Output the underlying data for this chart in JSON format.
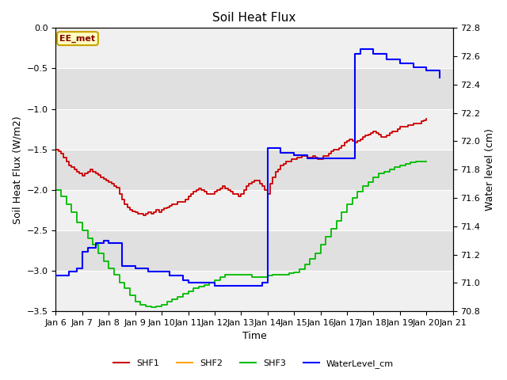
{
  "title": "Soil Heat Flux",
  "ylabel_left": "Soil Heat Flux (W/m2)",
  "ylabel_right": "Water level (cm)",
  "xlabel": "Time",
  "ylim_left": [
    -3.5,
    0.0
  ],
  "ylim_right": [
    70.8,
    72.8
  ],
  "background_color": "#ffffff",
  "plot_bg_light": "#f0f0f0",
  "plot_bg_dark": "#e0e0e0",
  "legend_label": "EE_met",
  "series": {
    "SHF1": {
      "color": "#cc0000",
      "x": [
        6.0,
        6.1,
        6.2,
        6.3,
        6.4,
        6.5,
        6.6,
        6.7,
        6.8,
        6.9,
        7.0,
        7.1,
        7.2,
        7.3,
        7.4,
        7.5,
        7.6,
        7.7,
        7.8,
        7.9,
        8.0,
        8.1,
        8.2,
        8.3,
        8.4,
        8.5,
        8.6,
        8.7,
        8.8,
        8.9,
        9.0,
        9.1,
        9.2,
        9.3,
        9.4,
        9.5,
        9.6,
        9.7,
        9.8,
        9.9,
        10.0,
        10.1,
        10.2,
        10.3,
        10.4,
        10.5,
        10.6,
        10.7,
        10.8,
        10.9,
        11.0,
        11.1,
        11.2,
        11.3,
        11.4,
        11.5,
        11.6,
        11.7,
        11.8,
        11.9,
        12.0,
        12.1,
        12.2,
        12.3,
        12.4,
        12.5,
        12.6,
        12.7,
        12.8,
        12.9,
        13.0,
        13.1,
        13.2,
        13.3,
        13.4,
        13.5,
        13.6,
        13.7,
        13.8,
        13.9,
        14.0,
        14.1,
        14.2,
        14.3,
        14.4,
        14.5,
        14.6,
        14.7,
        14.8,
        14.9,
        15.0,
        15.1,
        15.2,
        15.3,
        15.4,
        15.5,
        15.6,
        15.7,
        15.8,
        15.9,
        16.0,
        16.1,
        16.2,
        16.3,
        16.4,
        16.5,
        16.6,
        16.7,
        16.8,
        16.9,
        17.0,
        17.1,
        17.2,
        17.3,
        17.4,
        17.5,
        17.6,
        17.7,
        17.8,
        17.9,
        18.0,
        18.1,
        18.2,
        18.3,
        18.4,
        18.5,
        18.6,
        18.7,
        18.8,
        18.9,
        19.0,
        19.1,
        19.2,
        19.3,
        19.4,
        19.5,
        19.6,
        19.7,
        19.8,
        19.9,
        20.0
      ],
      "y": [
        -1.5,
        -1.52,
        -1.55,
        -1.6,
        -1.65,
        -1.7,
        -1.72,
        -1.75,
        -1.78,
        -1.8,
        -1.83,
        -1.8,
        -1.78,
        -1.75,
        -1.78,
        -1.8,
        -1.82,
        -1.85,
        -1.87,
        -1.88,
        -1.9,
        -1.92,
        -1.95,
        -1.97,
        -2.05,
        -2.12,
        -2.18,
        -2.22,
        -2.25,
        -2.27,
        -2.28,
        -2.3,
        -2.3,
        -2.32,
        -2.3,
        -2.28,
        -2.3,
        -2.28,
        -2.25,
        -2.28,
        -2.25,
        -2.23,
        -2.22,
        -2.2,
        -2.18,
        -2.18,
        -2.15,
        -2.15,
        -2.15,
        -2.12,
        -2.08,
        -2.05,
        -2.02,
        -2.0,
        -1.98,
        -2.0,
        -2.02,
        -2.05,
        -2.05,
        -2.05,
        -2.02,
        -2.0,
        -1.98,
        -1.95,
        -1.98,
        -2.0,
        -2.02,
        -2.05,
        -2.05,
        -2.08,
        -2.05,
        -2.0,
        -1.95,
        -1.92,
        -1.9,
        -1.88,
        -1.88,
        -1.92,
        -1.95,
        -2.0,
        -2.05,
        -1.92,
        -1.85,
        -1.78,
        -1.75,
        -1.7,
        -1.68,
        -1.65,
        -1.65,
        -1.62,
        -1.62,
        -1.6,
        -1.6,
        -1.58,
        -1.58,
        -1.6,
        -1.6,
        -1.58,
        -1.6,
        -1.62,
        -1.62,
        -1.58,
        -1.58,
        -1.55,
        -1.52,
        -1.5,
        -1.5,
        -1.48,
        -1.45,
        -1.42,
        -1.4,
        -1.38,
        -1.4,
        -1.42,
        -1.4,
        -1.38,
        -1.35,
        -1.33,
        -1.32,
        -1.3,
        -1.28,
        -1.3,
        -1.32,
        -1.35,
        -1.35,
        -1.33,
        -1.3,
        -1.28,
        -1.28,
        -1.25,
        -1.22,
        -1.22,
        -1.22,
        -1.2,
        -1.2,
        -1.18,
        -1.18,
        -1.18,
        -1.15,
        -1.14,
        -1.12
      ]
    },
    "SHF2": {
      "color": "#ffa500",
      "x": [
        6,
        21
      ],
      "y": [
        0.0,
        0.0
      ]
    },
    "SHF3": {
      "color": "#00bb00",
      "x": [
        6.0,
        6.2,
        6.4,
        6.6,
        6.8,
        7.0,
        7.2,
        7.4,
        7.6,
        7.8,
        8.0,
        8.2,
        8.4,
        8.6,
        8.8,
        9.0,
        9.2,
        9.4,
        9.6,
        9.8,
        10.0,
        10.2,
        10.4,
        10.6,
        10.8,
        11.0,
        11.2,
        11.4,
        11.6,
        11.8,
        12.0,
        12.2,
        12.4,
        12.6,
        12.8,
        13.0,
        13.2,
        13.4,
        13.6,
        13.8,
        14.0,
        14.2,
        14.4,
        14.6,
        14.8,
        15.0,
        15.2,
        15.4,
        15.6,
        15.8,
        16.0,
        16.2,
        16.4,
        16.6,
        16.8,
        17.0,
        17.2,
        17.4,
        17.6,
        17.8,
        18.0,
        18.2,
        18.4,
        18.6,
        18.8,
        19.0,
        19.2,
        19.4,
        19.6,
        19.8,
        20.0
      ],
      "y": [
        -2.0,
        -2.08,
        -2.18,
        -2.28,
        -2.4,
        -2.5,
        -2.6,
        -2.68,
        -2.78,
        -2.88,
        -2.97,
        -3.05,
        -3.15,
        -3.22,
        -3.3,
        -3.38,
        -3.42,
        -3.44,
        -3.45,
        -3.44,
        -3.42,
        -3.38,
        -3.35,
        -3.32,
        -3.28,
        -3.25,
        -3.22,
        -3.2,
        -3.18,
        -3.15,
        -3.12,
        -3.08,
        -3.05,
        -3.05,
        -3.05,
        -3.05,
        -3.05,
        -3.08,
        -3.08,
        -3.08,
        -3.06,
        -3.05,
        -3.05,
        -3.05,
        -3.03,
        -3.02,
        -2.98,
        -2.92,
        -2.85,
        -2.78,
        -2.68,
        -2.58,
        -2.48,
        -2.38,
        -2.28,
        -2.18,
        -2.1,
        -2.02,
        -1.95,
        -1.9,
        -1.85,
        -1.8,
        -1.78,
        -1.75,
        -1.72,
        -1.7,
        -1.68,
        -1.66,
        -1.65,
        -1.65,
        -1.65
      ]
    },
    "WaterLevel_cm": {
      "color": "#0000ff",
      "x": [
        6.0,
        6.3,
        6.5,
        6.8,
        7.0,
        7.2,
        7.5,
        7.8,
        8.0,
        8.5,
        9.0,
        9.5,
        10.0,
        10.3,
        10.5,
        10.8,
        11.0,
        11.5,
        12.0,
        12.5,
        13.0,
        13.5,
        13.8,
        14.0,
        14.2,
        14.5,
        15.0,
        15.5,
        16.0,
        16.5,
        17.0,
        17.3,
        17.5,
        18.0,
        18.5,
        19.0,
        19.5,
        20.0,
        20.5
      ],
      "y": [
        71.05,
        71.05,
        71.08,
        71.1,
        71.22,
        71.25,
        71.28,
        71.3,
        71.28,
        71.12,
        71.1,
        71.08,
        71.08,
        71.05,
        71.05,
        71.02,
        71.0,
        71.0,
        70.98,
        70.98,
        70.98,
        70.98,
        71.0,
        71.95,
        71.95,
        71.92,
        71.9,
        71.88,
        71.88,
        71.88,
        71.88,
        72.62,
        72.65,
        72.62,
        72.58,
        72.55,
        72.52,
        72.5,
        72.45
      ]
    }
  },
  "xticks": [
    6,
    7,
    8,
    9,
    10,
    11,
    12,
    13,
    14,
    15,
    16,
    17,
    18,
    19,
    20,
    21
  ],
  "xtick_labels": [
    "Jan 6",
    "Jan 7",
    "Jan 8",
    "Jan 9",
    "Jan 10",
    "Jan 11",
    "Jan 12",
    "Jan 13",
    "Jan 14",
    "Jan 15",
    "Jan 16",
    "Jan 17",
    "Jan 18",
    "Jan 19",
    "Jan 20",
    "Jan 21"
  ],
  "yticks_left": [
    0.0,
    -0.5,
    -1.0,
    -1.5,
    -2.0,
    -2.5,
    -3.0,
    -3.5
  ],
  "yticks_right": [
    70.8,
    71.0,
    71.2,
    71.4,
    71.6,
    71.8,
    72.0,
    72.2,
    72.4,
    72.6,
    72.8
  ],
  "ee_met_box_color": "#c8a000",
  "ee_met_bg": "#ffffc0",
  "ee_met_text_color": "#880000"
}
